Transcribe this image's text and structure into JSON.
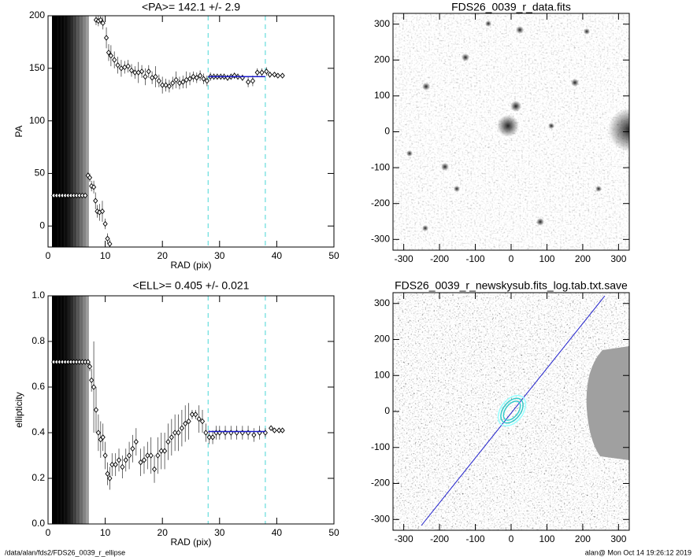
{
  "chart_data": [
    {
      "type": "scatter",
      "title": "<PA>= 142.1 +/-   2.9",
      "x_label": "RAD (pix)",
      "y_label": "PA",
      "xlim": [
        0,
        50
      ],
      "ylim": [
        -20,
        200
      ],
      "xticks": [
        0,
        10,
        20,
        30,
        40,
        50
      ],
      "yticks": [
        0,
        50,
        100,
        150,
        200
      ],
      "x": [
        1,
        1.5,
        2,
        2.5,
        3,
        3.5,
        4,
        4.5,
        5,
        5.5,
        6,
        6.5,
        7,
        7.3,
        7.6,
        8,
        8.3,
        8.6,
        9,
        9.5,
        10,
        10.4,
        10.8,
        8.4,
        8.8,
        9.2,
        9.6,
        10.2,
        10.6,
        11,
        11.6,
        12.2,
        12.8,
        13.4,
        14,
        14.6,
        15.2,
        15.8,
        16.4,
        17,
        17.6,
        18.2,
        18.8,
        19.4,
        20,
        20.6,
        21.2,
        21.8,
        22.4,
        23,
        23.6,
        24.2,
        24.8,
        25.4,
        26,
        26.6,
        27.2,
        27.8,
        28.4,
        29,
        29.6,
        30.2,
        30.8,
        31.4,
        32,
        32.6,
        33.2,
        34,
        35,
        35.8,
        36.6,
        37.4,
        38.2,
        38.8,
        39.6,
        40.2,
        41
      ],
      "values": [
        29,
        29,
        29,
        29,
        29,
        29,
        29,
        29,
        29,
        29,
        29,
        29,
        48,
        46,
        38,
        37,
        24,
        14,
        13,
        14,
        2,
        -12,
        -17,
        196,
        195,
        196,
        193,
        179,
        165,
        162,
        158,
        153,
        150,
        151,
        152,
        148,
        146,
        146,
        147,
        142,
        147,
        141,
        142,
        138,
        134,
        134,
        133,
        136,
        139,
        136,
        137,
        139,
        140,
        142,
        141,
        143,
        140,
        138,
        142,
        142,
        142,
        142,
        142,
        141,
        142,
        143,
        142,
        141,
        137,
        138,
        146,
        146,
        147,
        144,
        144,
        143,
        143
      ],
      "errors": [
        1,
        1,
        1,
        1,
        1,
        1,
        1,
        1,
        1,
        1,
        1,
        1,
        3,
        4,
        5,
        6,
        8,
        6,
        8,
        10,
        5,
        5,
        4,
        5,
        5,
        4,
        6,
        10,
        8,
        10,
        8,
        8,
        8,
        6,
        6,
        6,
        6,
        10,
        6,
        8,
        6,
        6,
        10,
        6,
        8,
        6,
        6,
        6,
        8,
        6,
        6,
        8,
        6,
        5,
        5,
        5,
        5,
        5,
        4,
        3,
        3,
        3,
        3,
        3,
        3,
        3,
        3,
        3,
        5,
        5,
        4,
        4,
        4,
        3,
        2,
        2,
        2
      ],
      "color": "#000000",
      "vlines": [
        28,
        38
      ],
      "vline_color": "#66dddd",
      "fit": {
        "xrange": [
          28,
          38
        ],
        "value": 142.1,
        "color": "#1a1acc"
      }
    },
    {
      "type": "image",
      "title": "FDS26_0039_r_data.fits",
      "variant": "data",
      "xlim": [
        -330,
        330
      ],
      "ylim": [
        -330,
        330
      ],
      "xticks": [
        -300,
        -200,
        -100,
        0,
        100,
        200,
        300
      ],
      "yticks": [
        -300,
        -200,
        -100,
        0,
        100,
        200,
        300
      ]
    },
    {
      "type": "scatter",
      "title": "<ELL>= 0.405 +/-  0.021",
      "x_label": "RAD (pix)",
      "y_label": "ellipticity",
      "xlim": [
        0,
        50
      ],
      "ylim": [
        0,
        1
      ],
      "xticks": [
        0,
        10,
        20,
        30,
        40,
        50
      ],
      "yticks": [
        {
          "value": 0,
          "label": "0.0"
        },
        0.2,
        0.4,
        0.6,
        0.8,
        {
          "value": 1,
          "label": "1.0"
        }
      ],
      "x": [
        1,
        1.5,
        2,
        2.5,
        3,
        3.5,
        4,
        4.5,
        5,
        5.5,
        6,
        6.5,
        7,
        7.3,
        7.6,
        8,
        8.4,
        8.8,
        9.2,
        9.6,
        10,
        10.4,
        10.8,
        11.2,
        11.8,
        12.4,
        13,
        13.6,
        14.2,
        14.8,
        15.4,
        16.2,
        16.8,
        17.4,
        18,
        18.6,
        19.2,
        19.8,
        20.4,
        21,
        21.6,
        22.2,
        22.8,
        23.4,
        24,
        24.6,
        25.2,
        25.8,
        26.4,
        27,
        27.6,
        28.2,
        28.8,
        29.4,
        30,
        31,
        32,
        33,
        34,
        35,
        36,
        37,
        38,
        39,
        39.6,
        40.4,
        41
      ],
      "values": [
        0.71,
        0.71,
        0.71,
        0.71,
        0.71,
        0.71,
        0.71,
        0.71,
        0.71,
        0.71,
        0.71,
        0.71,
        0.71,
        0.69,
        0.63,
        0.6,
        0.5,
        0.4,
        0.37,
        0.38,
        0.3,
        0.22,
        0.2,
        0.26,
        0.26,
        0.28,
        0.25,
        0.28,
        0.3,
        0.33,
        0.36,
        0.27,
        0.28,
        0.3,
        0.3,
        0.24,
        0.3,
        0.32,
        0.32,
        0.36,
        0.38,
        0.4,
        0.4,
        0.42,
        0.44,
        0.45,
        0.48,
        0.48,
        0.46,
        0.45,
        0.4,
        0.38,
        0.38,
        0.4,
        0.4,
        0.4,
        0.4,
        0.4,
        0.4,
        0.4,
        0.39,
        0.4,
        0.4,
        0.42,
        0.41,
        0.41,
        0.41
      ],
      "errors": [
        0.005,
        0.005,
        0.005,
        0.005,
        0.005,
        0.005,
        0.005,
        0.005,
        0.005,
        0.005,
        0.005,
        0.005,
        0.01,
        0.02,
        0.05,
        0.2,
        0.1,
        0.08,
        0.08,
        0.06,
        0.06,
        0.05,
        0.05,
        0.05,
        0.05,
        0.05,
        0.05,
        0.05,
        0.06,
        0.06,
        0.06,
        0.06,
        0.06,
        0.06,
        0.08,
        0.06,
        0.08,
        0.08,
        0.08,
        0.08,
        0.08,
        0.08,
        0.08,
        0.08,
        0.08,
        0.08,
        0.02,
        0.02,
        0.06,
        0.05,
        0.04,
        0.03,
        0.03,
        0.03,
        0.03,
        0.03,
        0.03,
        0.03,
        0.03,
        0.03,
        0.03,
        0.03,
        0.02,
        0.01,
        0.01,
        0.01,
        0.01
      ],
      "color": "#000000",
      "vlines": [
        28,
        38
      ],
      "vline_color": "#66dddd",
      "fit": {
        "xrange": [
          28,
          38
        ],
        "value": 0.405,
        "color": "#1a1acc"
      }
    },
    {
      "type": "image",
      "title": "FDS26_0039_r_newskysub.fits_log.tab.txt.save",
      "variant": "model",
      "xlim": [
        -330,
        330
      ],
      "ylim": [
        -330,
        330
      ],
      "xticks": [
        -300,
        -200,
        -100,
        0,
        100,
        200,
        300
      ],
      "yticks": [
        -300,
        -200,
        -100,
        0,
        100,
        200,
        300
      ]
    }
  ],
  "footer": {
    "left": "/data/alan/fds2/FDS26_0039_r_ellipse",
    "right": "alan@  Mon Oct 14 19:26:12 2019"
  }
}
